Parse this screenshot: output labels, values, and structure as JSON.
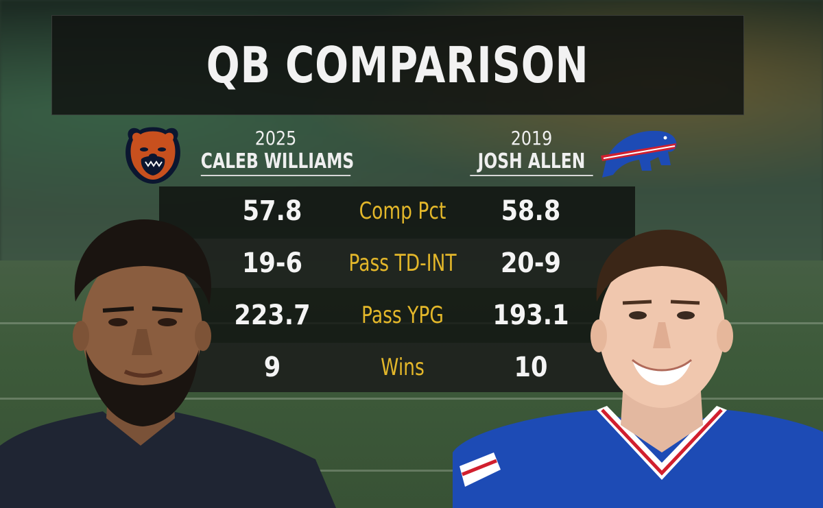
{
  "graphic": {
    "title": "QB COMPARISON"
  },
  "players": {
    "left": {
      "year": "2025",
      "name": "CALEB WILLIAMS",
      "team_logo": "chicago-bears-logo",
      "photo": "caleb-williams-headshot"
    },
    "right": {
      "year": "2019",
      "name": "JOSH ALLEN",
      "team_logo": "buffalo-bills-logo",
      "photo": "josh-allen-headshot"
    }
  },
  "stats": [
    {
      "label": "Comp Pct",
      "left": "57.8",
      "right": "58.8"
    },
    {
      "label": "Pass TD-INT",
      "left": "19-6",
      "right": "20-9"
    },
    {
      "label": "Pass YPG",
      "left": "223.7",
      "right": "193.1"
    },
    {
      "label": "Wins",
      "left": "9",
      "right": "10"
    }
  ],
  "colors": {
    "label_gold": "#e3b72a",
    "value_white": "#f4f4f4",
    "bears_orange": "#c8501e",
    "bills_blue": "#1d4bb5",
    "bills_red": "#d11f2e"
  }
}
